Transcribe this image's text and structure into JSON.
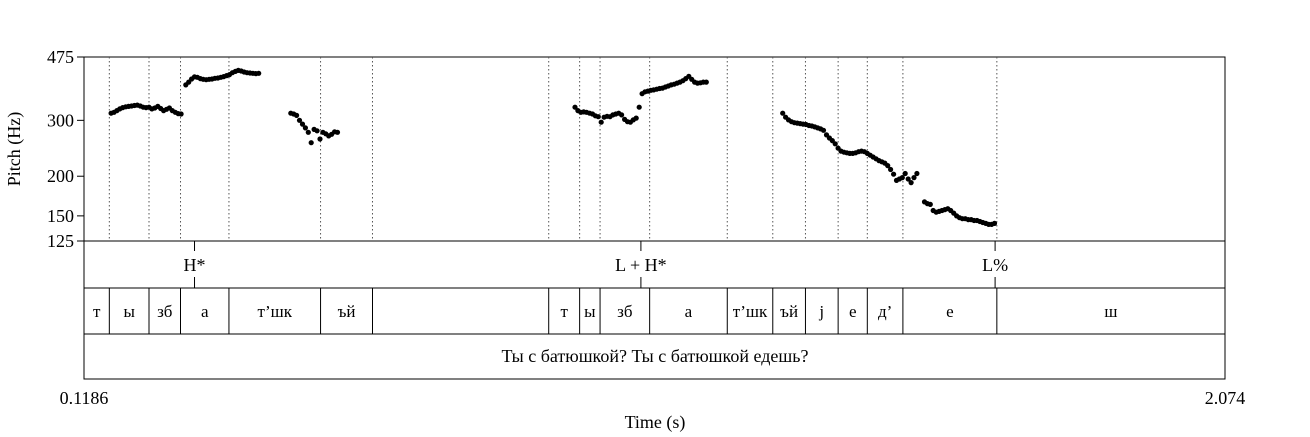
{
  "chart_data": {
    "type": "scatter",
    "title": "",
    "xlabel": "Time (s)",
    "ylabel": "Pitch (Hz)",
    "xlim": [
      0.1186,
      2.074
    ],
    "ylim": [
      125,
      475
    ],
    "y_scale": "log",
    "yticks": [
      125,
      150,
      200,
      300,
      475
    ],
    "xtick_labels": [
      "0.1186",
      "2.074"
    ],
    "marker_color": "#000000",
    "pitch_points": [
      [
        0.165,
        316
      ],
      [
        0.17,
        318
      ],
      [
        0.175,
        322
      ],
      [
        0.18,
        326
      ],
      [
        0.185,
        329
      ],
      [
        0.19,
        331
      ],
      [
        0.195,
        332
      ],
      [
        0.2,
        333
      ],
      [
        0.205,
        334
      ],
      [
        0.21,
        335
      ],
      [
        0.215,
        333
      ],
      [
        0.22,
        330
      ],
      [
        0.225,
        329
      ],
      [
        0.23,
        330
      ],
      [
        0.235,
        326
      ],
      [
        0.24,
        328
      ],
      [
        0.245,
        332
      ],
      [
        0.25,
        327
      ],
      [
        0.255,
        322
      ],
      [
        0.26,
        325
      ],
      [
        0.265,
        328
      ],
      [
        0.27,
        322
      ],
      [
        0.275,
        318
      ],
      [
        0.28,
        315
      ],
      [
        0.285,
        314
      ],
      [
        0.293,
        388
      ],
      [
        0.298,
        396
      ],
      [
        0.303,
        405
      ],
      [
        0.308,
        411
      ],
      [
        0.313,
        410
      ],
      [
        0.318,
        406
      ],
      [
        0.323,
        404
      ],
      [
        0.328,
        403
      ],
      [
        0.333,
        404
      ],
      [
        0.338,
        405
      ],
      [
        0.343,
        407
      ],
      [
        0.348,
        408
      ],
      [
        0.353,
        410
      ],
      [
        0.358,
        412
      ],
      [
        0.363,
        415
      ],
      [
        0.368,
        418
      ],
      [
        0.373,
        424
      ],
      [
        0.378,
        428
      ],
      [
        0.383,
        431
      ],
      [
        0.388,
        429
      ],
      [
        0.393,
        426
      ],
      [
        0.398,
        424
      ],
      [
        0.403,
        423
      ],
      [
        0.408,
        422
      ],
      [
        0.413,
        421
      ],
      [
        0.418,
        422
      ],
      [
        0.473,
        316
      ],
      [
        0.478,
        314
      ],
      [
        0.483,
        311
      ],
      [
        0.488,
        300
      ],
      [
        0.493,
        292
      ],
      [
        0.498,
        284
      ],
      [
        0.503,
        275
      ],
      [
        0.508,
        255
      ],
      [
        0.513,
        281
      ],
      [
        0.518,
        278
      ],
      [
        0.523,
        262
      ],
      [
        0.528,
        275
      ],
      [
        0.533,
        272
      ],
      [
        0.538,
        268
      ],
      [
        0.543,
        271
      ],
      [
        0.548,
        276
      ],
      [
        0.553,
        275
      ],
      [
        0.96,
        330
      ],
      [
        0.965,
        322
      ],
      [
        0.97,
        318
      ],
      [
        0.975,
        319
      ],
      [
        0.98,
        318
      ],
      [
        0.985,
        316
      ],
      [
        0.99,
        314
      ],
      [
        0.995,
        310
      ],
      [
        1.0,
        308
      ],
      [
        1.005,
        296
      ],
      [
        1.01,
        307
      ],
      [
        1.015,
        309
      ],
      [
        1.02,
        308
      ],
      [
        1.025,
        312
      ],
      [
        1.03,
        314
      ],
      [
        1.035,
        316
      ],
      [
        1.04,
        312
      ],
      [
        1.045,
        302
      ],
      [
        1.05,
        297
      ],
      [
        1.055,
        296
      ],
      [
        1.06,
        301
      ],
      [
        1.065,
        305
      ],
      [
        1.07,
        330
      ],
      [
        1.075,
        364
      ],
      [
        1.08,
        369
      ],
      [
        1.085,
        371
      ],
      [
        1.09,
        373
      ],
      [
        1.095,
        374
      ],
      [
        1.1,
        376
      ],
      [
        1.105,
        378
      ],
      [
        1.11,
        379
      ],
      [
        1.115,
        382
      ],
      [
        1.12,
        385
      ],
      [
        1.125,
        388
      ],
      [
        1.13,
        390
      ],
      [
        1.135,
        393
      ],
      [
        1.14,
        396
      ],
      [
        1.145,
        400
      ],
      [
        1.15,
        406
      ],
      [
        1.155,
        413
      ],
      [
        1.16,
        404
      ],
      [
        1.165,
        396
      ],
      [
        1.17,
        393
      ],
      [
        1.175,
        394
      ],
      [
        1.18,
        396
      ],
      [
        1.185,
        396
      ],
      [
        1.316,
        316
      ],
      [
        1.321,
        307
      ],
      [
        1.326,
        301
      ],
      [
        1.331,
        297
      ],
      [
        1.336,
        295
      ],
      [
        1.341,
        294
      ],
      [
        1.346,
        293
      ],
      [
        1.351,
        292
      ],
      [
        1.356,
        291
      ],
      [
        1.361,
        289
      ],
      [
        1.366,
        288
      ],
      [
        1.371,
        286
      ],
      [
        1.376,
        284
      ],
      [
        1.381,
        282
      ],
      [
        1.386,
        279
      ],
      [
        1.391,
        270
      ],
      [
        1.396,
        264
      ],
      [
        1.401,
        259
      ],
      [
        1.406,
        253
      ],
      [
        1.411,
        245
      ],
      [
        1.416,
        240
      ],
      [
        1.421,
        238
      ],
      [
        1.426,
        237
      ],
      [
        1.431,
        236
      ],
      [
        1.436,
        236
      ],
      [
        1.441,
        237
      ],
      [
        1.446,
        239
      ],
      [
        1.451,
        240
      ],
      [
        1.456,
        239
      ],
      [
        1.461,
        236
      ],
      [
        1.466,
        233
      ],
      [
        1.471,
        230
      ],
      [
        1.476,
        227
      ],
      [
        1.481,
        224
      ],
      [
        1.486,
        222
      ],
      [
        1.491,
        220
      ],
      [
        1.496,
        216
      ],
      [
        1.501,
        210
      ],
      [
        1.506,
        203
      ],
      [
        1.511,
        194
      ],
      [
        1.516,
        196
      ],
      [
        1.521,
        198
      ],
      [
        1.526,
        204
      ],
      [
        1.531,
        196
      ],
      [
        1.536,
        191
      ],
      [
        1.541,
        198
      ],
      [
        1.546,
        204
      ],
      [
        1.559,
        166
      ],
      [
        1.564,
        164
      ],
      [
        1.569,
        163
      ],
      [
        1.574,
        156
      ],
      [
        1.579,
        154
      ],
      [
        1.584,
        155
      ],
      [
        1.589,
        156
      ],
      [
        1.594,
        157
      ],
      [
        1.599,
        158
      ],
      [
        1.604,
        156
      ],
      [
        1.609,
        153
      ],
      [
        1.614,
        150
      ],
      [
        1.619,
        148
      ],
      [
        1.624,
        147
      ],
      [
        1.629,
        147
      ],
      [
        1.634,
        146
      ],
      [
        1.639,
        146
      ],
      [
        1.644,
        145
      ],
      [
        1.649,
        145
      ],
      [
        1.654,
        144
      ],
      [
        1.659,
        143
      ],
      [
        1.664,
        142
      ],
      [
        1.669,
        141
      ],
      [
        1.674,
        141
      ],
      [
        1.679,
        142
      ]
    ],
    "tone_tier": {
      "labels": [
        {
          "t": 0.308,
          "text": "H*"
        },
        {
          "t": 1.073,
          "text": "L + H*"
        },
        {
          "t": 1.68,
          "text": "L%"
        }
      ]
    },
    "segment_tier": {
      "boundaries": [
        0.162,
        0.23,
        0.284,
        0.367,
        0.524,
        0.613,
        0.915,
        0.968,
        1.003,
        1.088,
        1.221,
        1.299,
        1.355,
        1.411,
        1.461,
        1.522,
        1.683
      ],
      "labels": [
        {
          "text": "т",
          "from": 0.1186,
          "to": 0.162
        },
        {
          "text": "ы",
          "from": 0.162,
          "to": 0.23
        },
        {
          "text": "зб",
          "from": 0.23,
          "to": 0.284
        },
        {
          "text": "а",
          "from": 0.284,
          "to": 0.367
        },
        {
          "text": "т’шк",
          "from": 0.367,
          "to": 0.524
        },
        {
          "text": "ъй",
          "from": 0.524,
          "to": 0.613
        },
        {
          "text": "т",
          "from": 0.915,
          "to": 0.968
        },
        {
          "text": "ы",
          "from": 0.968,
          "to": 1.003
        },
        {
          "text": "зб",
          "from": 1.003,
          "to": 1.088
        },
        {
          "text": "а",
          "from": 1.088,
          "to": 1.221
        },
        {
          "text": "т’шк",
          "from": 1.221,
          "to": 1.299
        },
        {
          "text": "ъй",
          "from": 1.299,
          "to": 1.355
        },
        {
          "text": "j",
          "from": 1.355,
          "to": 1.411
        },
        {
          "text": "е",
          "from": 1.411,
          "to": 1.461
        },
        {
          "text": "д’",
          "from": 1.461,
          "to": 1.522
        },
        {
          "text": "е",
          "from": 1.522,
          "to": 1.683
        },
        {
          "text": "ш",
          "from": 1.683,
          "to": 2.074
        }
      ]
    },
    "sentence_tier": {
      "text": "Ты с батюшкой? Ты с батюшкой едешь?"
    }
  }
}
